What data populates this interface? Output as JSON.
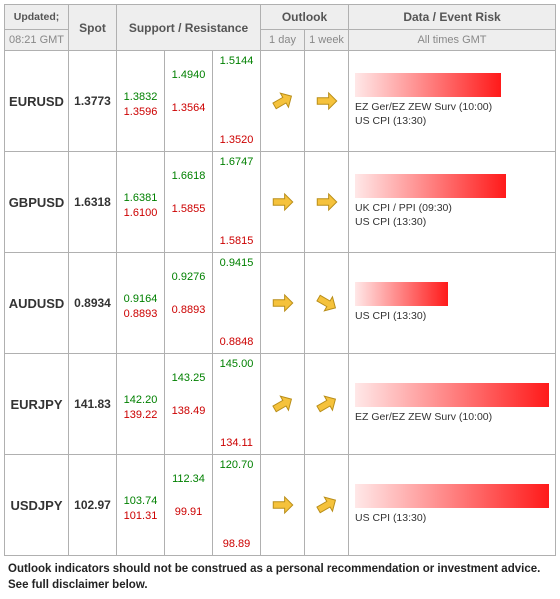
{
  "header": {
    "updated_label": "Updated;",
    "updated_time": "08:21 GMT",
    "spot": "Spot",
    "sr": "Support / Resistance",
    "outlook": "Outlook",
    "outlook_1d": "1 day",
    "outlook_1w": "1 week",
    "risk": "Data / Event Risk",
    "risk_sub": "All times GMT"
  },
  "colors": {
    "resistance": "#008000",
    "support": "#cc0000",
    "arrow_fill": "#f5c23c",
    "arrow_stroke": "#b88d18",
    "grid": "#b0b0b0",
    "header_bg": "#eeeeee",
    "bar_start": "#ffe8e8",
    "bar_end": "#ff1a1a"
  },
  "arrows": {
    "flat": 0,
    "up": -30,
    "down": 30
  },
  "rows": [
    {
      "pair": "EURUSD",
      "spot": "1.3773",
      "r1": "1.3832",
      "s1": "1.3596",
      "r2": "1.4940",
      "s2": "1.3564",
      "r3": "1.5144",
      "s3": "1.3520",
      "out1": "up",
      "out2": "flat",
      "risk_bar_pct": 75,
      "risk_lines": [
        "EZ Ger/EZ ZEW Surv (10:00)",
        "US CPI (13:30)"
      ]
    },
    {
      "pair": "GBPUSD",
      "spot": "1.6318",
      "r1": "1.6381",
      "s1": "1.6100",
      "r2": "1.6618",
      "s2": "1.5855",
      "r3": "1.6747",
      "s3": "1.5815",
      "out1": "flat",
      "out2": "flat",
      "risk_bar_pct": 78,
      "risk_lines": [
        "UK CPI / PPI (09:30)",
        "US CPI (13:30)"
      ]
    },
    {
      "pair": "AUDUSD",
      "spot": "0.8934",
      "r1": "0.9164",
      "s1": "0.8893",
      "r2": "0.9276",
      "s2": "0.8893",
      "r3": "0.9415",
      "s3": "0.8848",
      "out1": "flat",
      "out2": "down",
      "risk_bar_pct": 48,
      "risk_lines": [
        "US CPI (13:30)"
      ]
    },
    {
      "pair": "EURJPY",
      "spot": "141.83",
      "r1": "142.20",
      "s1": "139.22",
      "r2": "143.25",
      "s2": "138.49",
      "r3": "145.00",
      "s3": "134.11",
      "out1": "up",
      "out2": "up",
      "risk_bar_pct": 100,
      "risk_lines": [
        "EZ Ger/EZ ZEW Surv (10:00)"
      ]
    },
    {
      "pair": "USDJPY",
      "spot": "102.97",
      "r1": "103.74",
      "s1": "101.31",
      "r2": "112.34",
      "s2": "99.91",
      "r3": "120.70",
      "s3": "98.89",
      "out1": "flat",
      "out2": "up",
      "risk_bar_pct": 100,
      "risk_lines": [
        "US CPI (13:30)"
      ]
    }
  ],
  "footer": "Outlook indicators should not be construed as a personal recommendation or investment advice. See full disclaimer below."
}
